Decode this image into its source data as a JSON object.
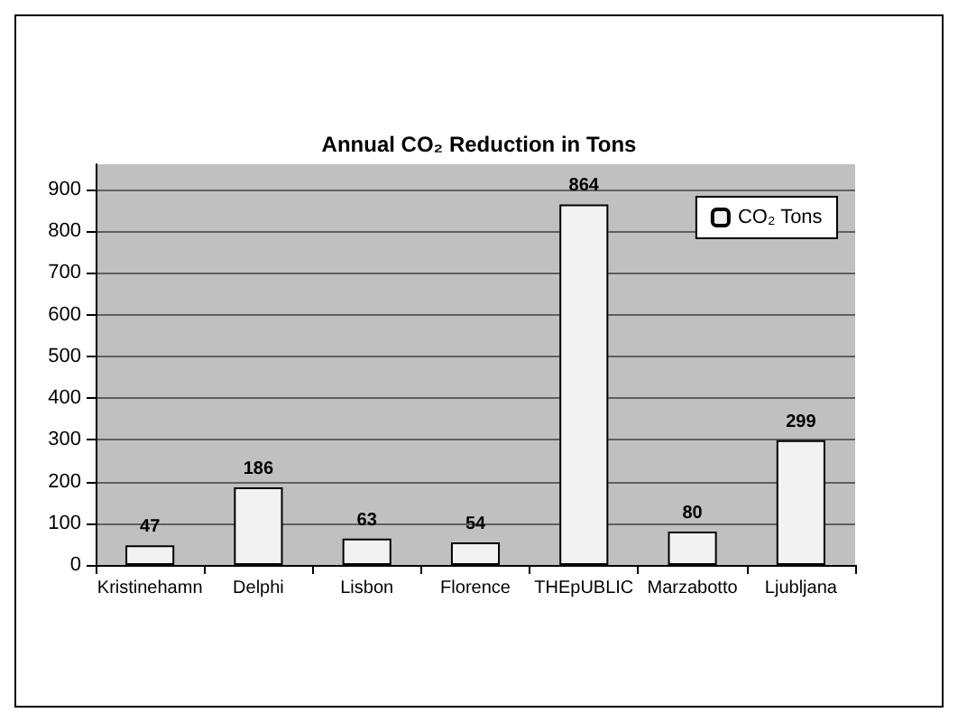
{
  "chart_data": {
    "type": "bar",
    "title": "Annual CO₂ Reduction in Tons",
    "categories": [
      "Kristinehamn",
      "Delphi",
      "Lisbon",
      "Florence",
      "THEpUBLIC",
      "Marzabotto",
      "Ljubljana"
    ],
    "series": [
      {
        "name": "CO₂ Tons",
        "color": "#f2f2f2",
        "values": [
          47,
          186,
          63,
          54,
          864,
          80,
          299
        ]
      }
    ],
    "ylim": [
      0,
      960
    ],
    "yticks": [
      0,
      100,
      200,
      300,
      400,
      500,
      600,
      700,
      800,
      900
    ],
    "grid": "y",
    "legend": "top right",
    "data_labels": true
  }
}
